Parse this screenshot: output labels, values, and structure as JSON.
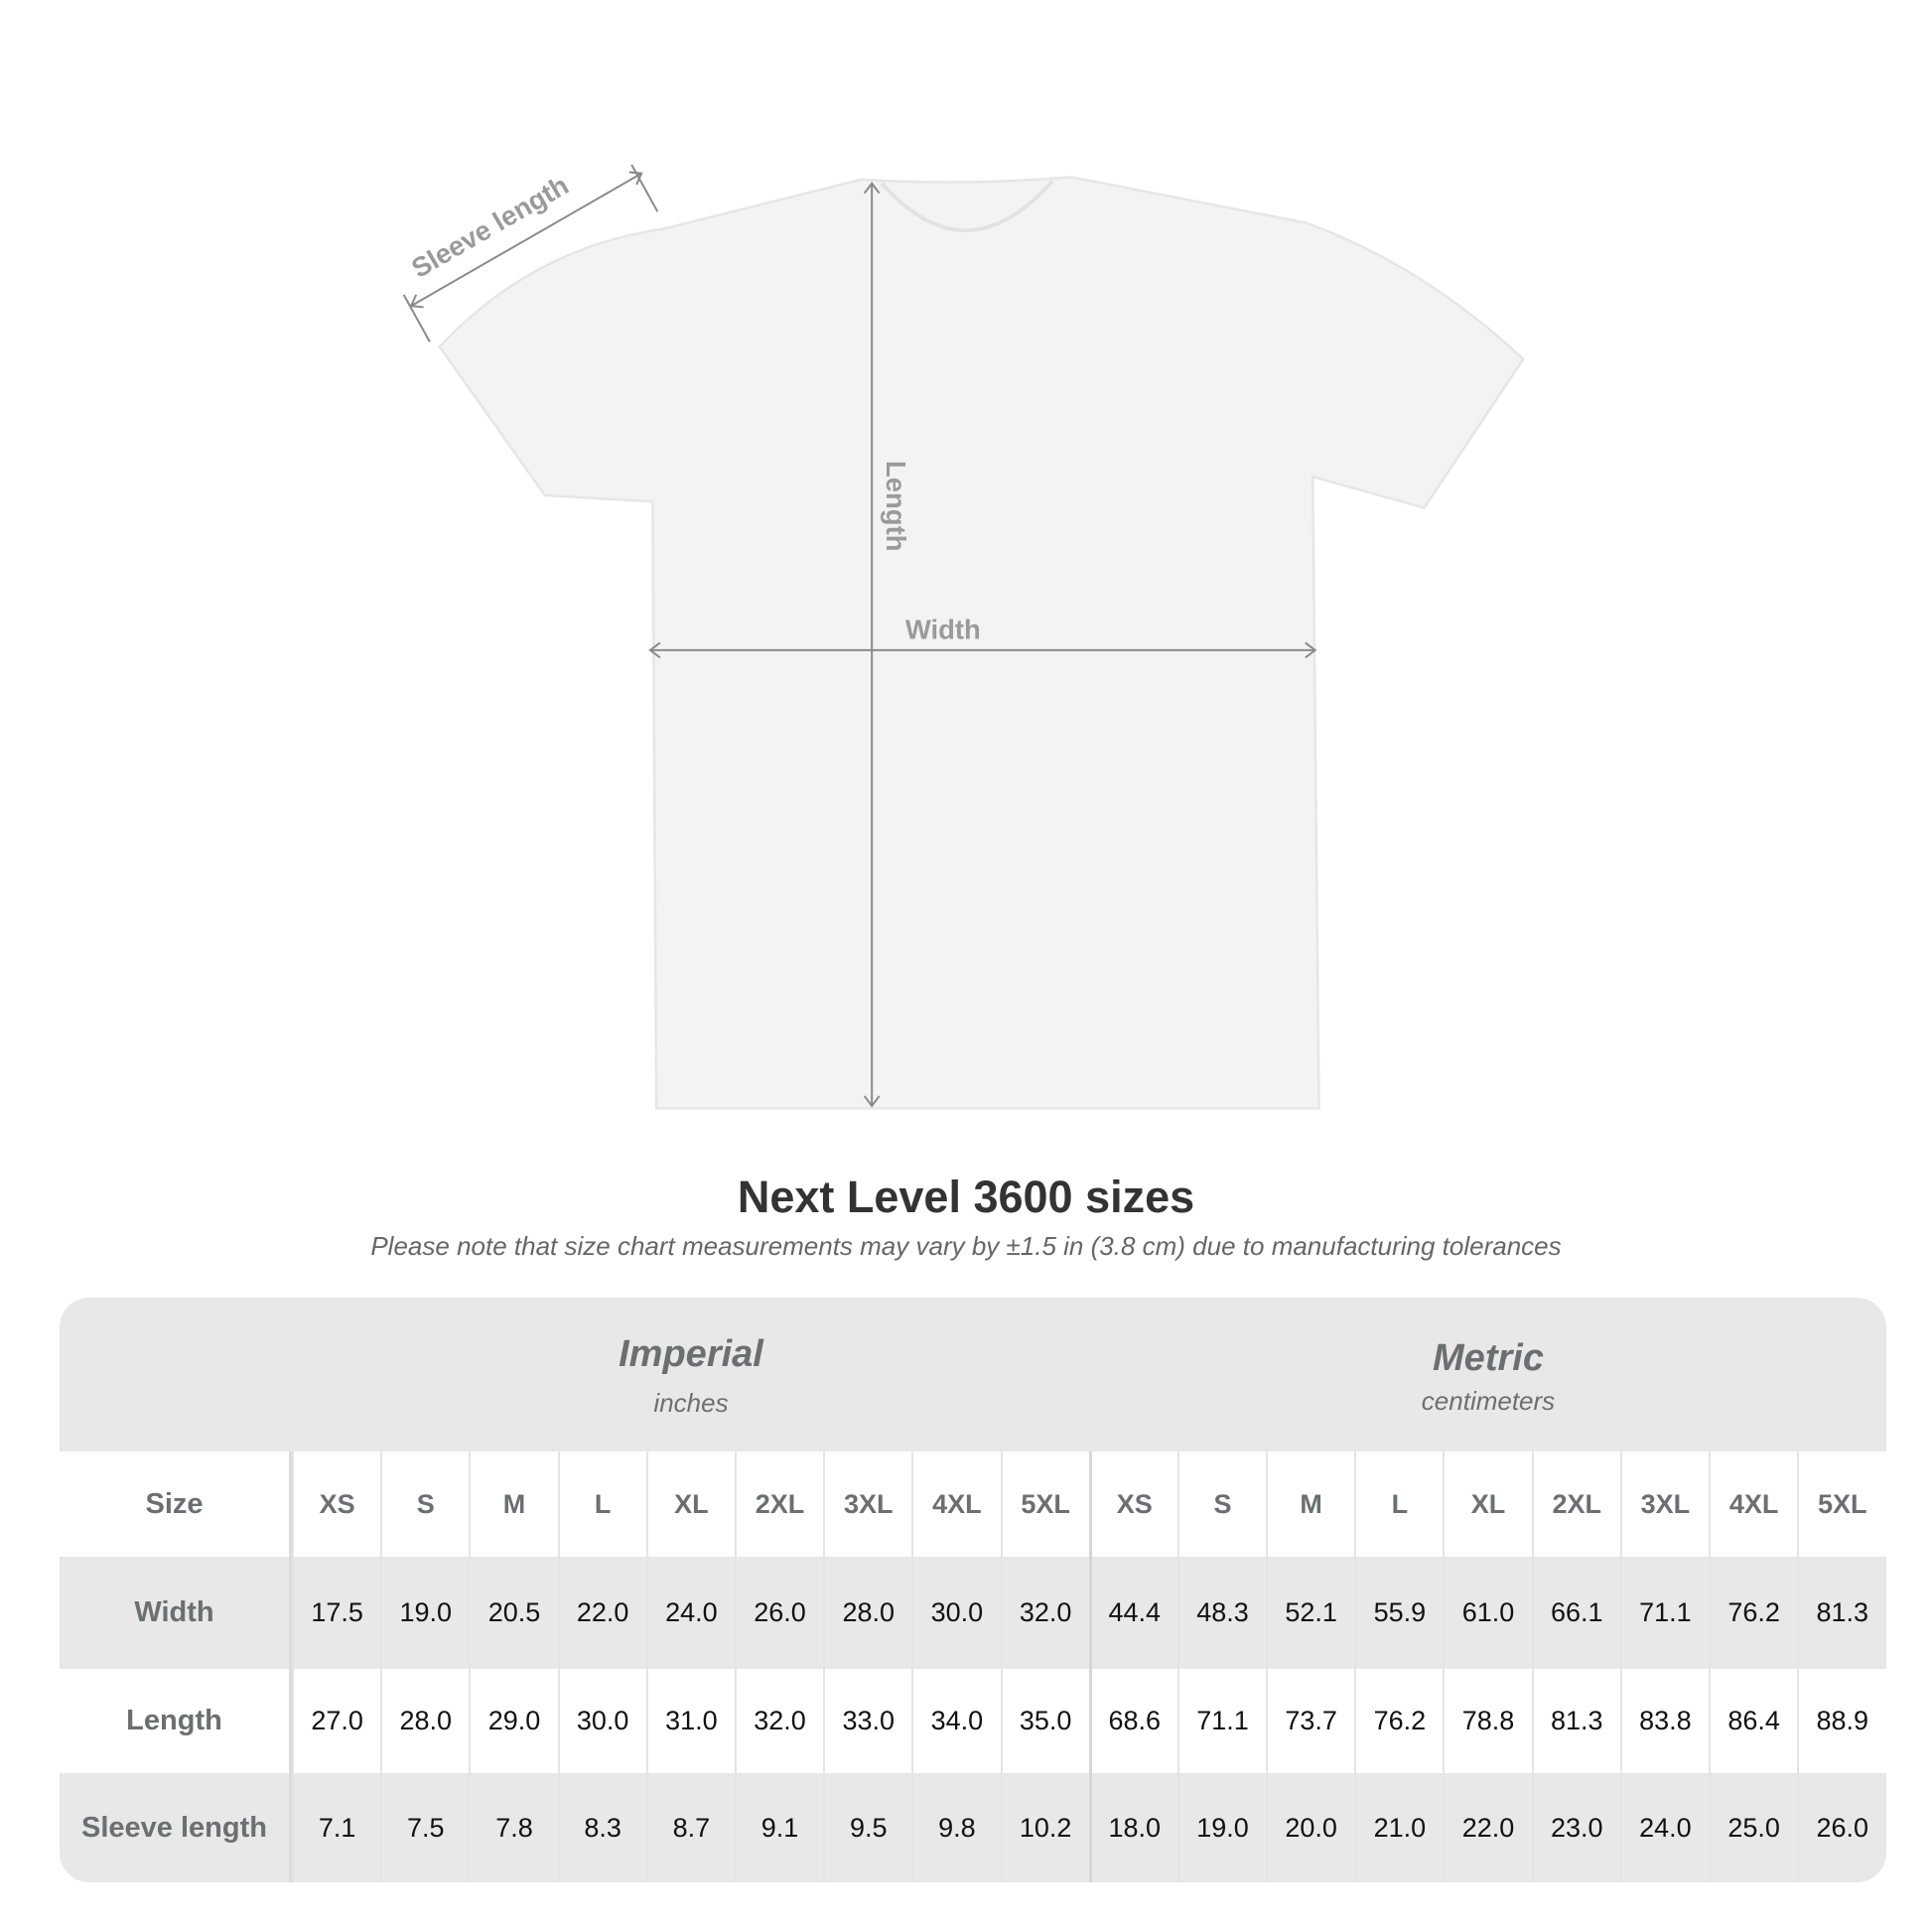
{
  "diagram": {
    "labels": {
      "sleeve": "Sleeve length",
      "length": "Length",
      "width": "Width"
    },
    "colors": {
      "arrow": "#8a8a8a",
      "shirt": "#f3f3f3"
    }
  },
  "title": "Next Level 3600 sizes",
  "subtitle": "Please note that size chart measurements may vary by ±1.5 in (3.8 cm) due to manufacturing tolerances",
  "table": {
    "imperial": {
      "name": "Imperial",
      "unit": "inches"
    },
    "metric": {
      "name": "Metric",
      "unit": "centimeters"
    },
    "size_label": "Size",
    "sizes": [
      "XS",
      "S",
      "M",
      "L",
      "XL",
      "2XL",
      "3XL",
      "4XL",
      "5XL"
    ],
    "rows": [
      {
        "label": "Width",
        "imperial": [
          "17.5",
          "19.0",
          "20.5",
          "22.0",
          "24.0",
          "26.0",
          "28.0",
          "30.0",
          "32.0"
        ],
        "metric": [
          "44.4",
          "48.3",
          "52.1",
          "55.9",
          "61.0",
          "66.1",
          "71.1",
          "76.2",
          "81.3"
        ]
      },
      {
        "label": "Length",
        "imperial": [
          "27.0",
          "28.0",
          "29.0",
          "30.0",
          "31.0",
          "32.0",
          "33.0",
          "34.0",
          "35.0"
        ],
        "metric": [
          "68.6",
          "71.1",
          "73.7",
          "76.2",
          "78.8",
          "81.3",
          "83.8",
          "86.4",
          "88.9"
        ]
      },
      {
        "label": "Sleeve length",
        "imperial": [
          "7.1",
          "7.5",
          "7.8",
          "8.3",
          "8.7",
          "9.1",
          "9.5",
          "9.8",
          "10.2"
        ],
        "metric": [
          "18.0",
          "19.0",
          "20.0",
          "21.0",
          "22.0",
          "23.0",
          "24.0",
          "25.0",
          "26.0"
        ]
      }
    ]
  }
}
